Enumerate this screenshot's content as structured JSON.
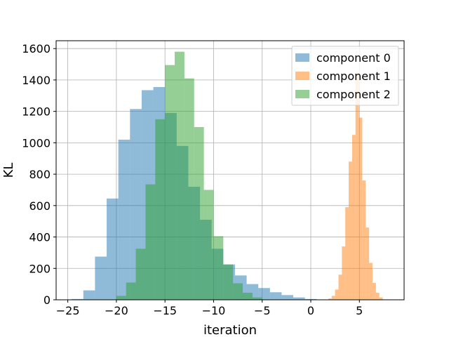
{
  "chart_data": {
    "type": "histogram",
    "xlabel": "iteration",
    "ylabel": "KL",
    "xlim": [
      -26.2,
      9.6
    ],
    "ylim": [
      0,
      1650
    ],
    "xticks": [
      -25,
      -20,
      -15,
      -10,
      -5,
      0,
      5
    ],
    "xtick_labels": [
      "−25",
      "−20",
      "−15",
      "−10",
      "−5",
      "0",
      "5"
    ],
    "yticks": [
      0,
      200,
      400,
      600,
      800,
      1000,
      1200,
      1400,
      1600
    ],
    "ytick_labels": [
      "0",
      "200",
      "400",
      "600",
      "800",
      "1000",
      "1200",
      "1400",
      "1600"
    ],
    "grid": true,
    "legend_position": "top-right",
    "series": [
      {
        "name": "component 0",
        "color": "#1f77b4",
        "alpha": 0.5,
        "bins": [
          -24.6,
          -23.4,
          -22.2,
          -21.0,
          -19.8,
          -18.6,
          -17.4,
          -16.2,
          -15.0,
          -13.8,
          -12.6,
          -11.4,
          -10.2,
          -9.0,
          -7.8,
          -6.6,
          -5.4,
          -4.2,
          -3.0,
          -1.8,
          -0.6,
          0.6
        ],
        "counts": [
          5,
          60,
          275,
          645,
          1020,
          1215,
          1335,
          1355,
          1190,
          980,
          720,
          510,
          325,
          225,
          155,
          100,
          75,
          48,
          30,
          15,
          5
        ]
      },
      {
        "name": "component 1",
        "color": "#ff7f0e",
        "alpha": 0.5,
        "bins": [
          1.8,
          2.15,
          2.5,
          2.85,
          3.2,
          3.55,
          3.9,
          4.25,
          4.6,
          4.95,
          5.3,
          5.65,
          6.0,
          6.35,
          6.7,
          7.05,
          7.4
        ],
        "counts": [
          8,
          25,
          65,
          160,
          340,
          590,
          880,
          1050,
          1450,
          1160,
          760,
          460,
          235,
          108,
          45,
          15
        ]
      },
      {
        "name": "component 2",
        "color": "#2ca02c",
        "alpha": 0.5,
        "bins": [
          -20.0,
          -19.0,
          -18.0,
          -17.0,
          -16.0,
          -15.0,
          -14.0,
          -13.0,
          -12.0,
          -11.0,
          -10.0,
          -9.0,
          -8.0,
          -7.0,
          -6.0,
          -5.0
        ],
        "counts": [
          25,
          110,
          325,
          735,
          1150,
          1495,
          1580,
          1410,
          1100,
          700,
          405,
          225,
          105,
          45,
          15
        ]
      }
    ]
  }
}
